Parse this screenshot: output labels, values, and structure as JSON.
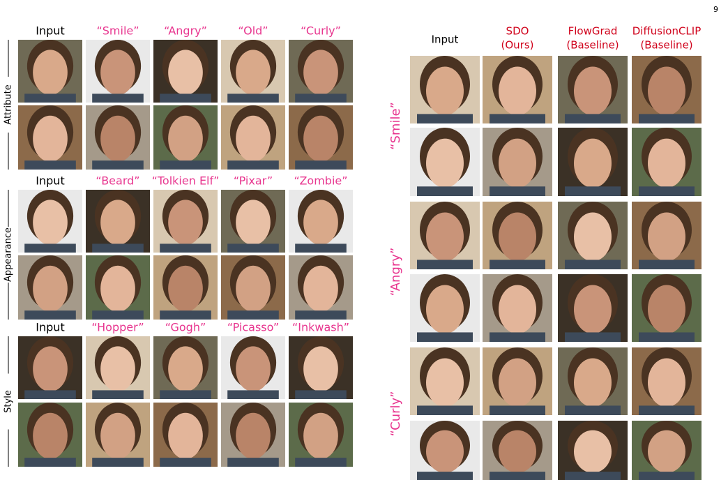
{
  "page_number": "9",
  "left": {
    "groups": [
      {
        "label": "Attribute",
        "headers": [
          "Input",
          "“Smile”",
          "“Angry”",
          "“Old”",
          "“Curly”"
        ]
      },
      {
        "label": "Appearance",
        "headers": [
          "Input",
          "“Beard”",
          "“Tolkien Elf”",
          "“Pixar”",
          "“Zombie”"
        ]
      },
      {
        "label": "Style",
        "headers": [
          "Input",
          "“Hopper”",
          "“Gogh”",
          "“Picasso”",
          "“Inkwash”"
        ]
      }
    ]
  },
  "right": {
    "headers": [
      [
        "Input"
      ],
      [
        "SDO",
        "(Ours)"
      ],
      [
        "FlowGrad",
        "(Baseline)"
      ],
      [
        "DiffusionCLIP",
        "(Baseline)"
      ]
    ],
    "row_labels": [
      "“Smile”",
      "“Angry”",
      "“Curly”"
    ]
  }
}
